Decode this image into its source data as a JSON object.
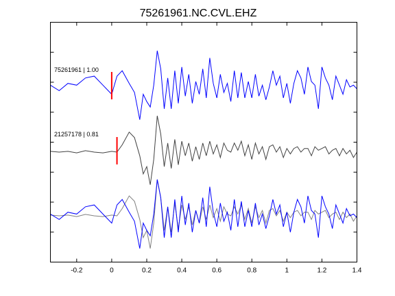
{
  "chart_data": {
    "type": "line",
    "title": "75261961.NC.CVL.EHZ",
    "xlabel": "",
    "ylabel": "",
    "xlim": [
      -0.35,
      1.4
    ],
    "xticks": [
      -0.2,
      0,
      0.2,
      0.4,
      0.6,
      0.8,
      1,
      1.2,
      1.4
    ],
    "xtick_labels": [
      "-0.2",
      "0",
      "0.2",
      "0.4",
      "0.6",
      "0.8",
      "1",
      "1.2",
      "1.4"
    ],
    "grid": false,
    "colors": {
      "trace_a": "#0000ff",
      "trace_b": "#404040",
      "overlay_b": "#808080",
      "pick": "#ff0000"
    },
    "traces": [
      {
        "label": "75261961 | 1.00",
        "pick_time": 0.0,
        "x": [
          -0.35,
          -0.3,
          -0.25,
          -0.2,
          -0.15,
          -0.1,
          -0.05,
          0,
          0.03,
          0.06,
          0.1,
          0.13,
          0.16,
          0.18,
          0.2,
          0.22,
          0.24,
          0.26,
          0.28,
          0.3,
          0.32,
          0.34,
          0.36,
          0.38,
          0.4,
          0.42,
          0.44,
          0.46,
          0.48,
          0.5,
          0.52,
          0.54,
          0.56,
          0.58,
          0.6,
          0.62,
          0.64,
          0.66,
          0.68,
          0.7,
          0.72,
          0.74,
          0.76,
          0.78,
          0.8,
          0.82,
          0.84,
          0.86,
          0.88,
          0.9,
          0.92,
          0.94,
          0.96,
          0.98,
          1.0,
          1.02,
          1.04,
          1.06,
          1.08,
          1.1,
          1.12,
          1.14,
          1.16,
          1.18,
          1.2,
          1.22,
          1.24,
          1.26,
          1.28,
          1.3,
          1.32,
          1.34,
          1.36,
          1.38,
          1.4
        ],
        "y": [
          0.05,
          -0.1,
          0.1,
          0.05,
          0.25,
          0.3,
          0.05,
          -0.2,
          0.3,
          0.45,
          0.1,
          -0.15,
          -0.9,
          -0.2,
          -0.4,
          -0.55,
          0.05,
          1.0,
          0.5,
          -0.6,
          0.25,
          -0.6,
          0.45,
          -0.45,
          0.55,
          -0.25,
          0.35,
          -0.45,
          0.15,
          -0.2,
          0.5,
          -0.3,
          0.8,
          0.1,
          -0.3,
          0.35,
          -0.15,
          0.1,
          -0.4,
          0.45,
          -0.3,
          0.4,
          -0.3,
          0.15,
          -0.3,
          0.35,
          -0.25,
          0.05,
          -0.35,
          0.0,
          0.45,
          0.05,
          0.3,
          -0.3,
          0.1,
          -0.45,
          0.1,
          0.45,
          0.25,
          -0.2,
          0.55,
          0.15,
          0.05,
          -0.6,
          0.55,
          0.25,
          0.05,
          -0.35,
          0.3,
          0.05,
          -0.2,
          0.2,
          0.0,
          0.05,
          -0.05
        ]
      },
      {
        "label": "21257178 | 0.81",
        "pick_time": 0.03,
        "x": [
          -0.35,
          -0.3,
          -0.25,
          -0.2,
          -0.15,
          -0.1,
          -0.05,
          0,
          0.03,
          0.06,
          0.1,
          0.13,
          0.16,
          0.18,
          0.2,
          0.22,
          0.24,
          0.26,
          0.28,
          0.3,
          0.32,
          0.34,
          0.36,
          0.38,
          0.4,
          0.42,
          0.44,
          0.46,
          0.48,
          0.5,
          0.52,
          0.54,
          0.56,
          0.58,
          0.6,
          0.62,
          0.64,
          0.66,
          0.68,
          0.7,
          0.72,
          0.74,
          0.76,
          0.78,
          0.8,
          0.82,
          0.84,
          0.86,
          0.88,
          0.9,
          0.92,
          0.94,
          0.96,
          0.98,
          1.0,
          1.02,
          1.04,
          1.06,
          1.08,
          1.1,
          1.12,
          1.14,
          1.16,
          1.18,
          1.2,
          1.22,
          1.24,
          1.26,
          1.28,
          1.3,
          1.32,
          1.34,
          1.36,
          1.38,
          1.4
        ],
        "y": [
          0.02,
          0.0,
          0.02,
          -0.02,
          0.04,
          0.0,
          -0.02,
          0.02,
          0.0,
          0.2,
          0.55,
          0.4,
          -0.1,
          -0.6,
          -0.4,
          -0.9,
          -0.2,
          1.0,
          0.5,
          -0.4,
          0.25,
          -0.45,
          0.35,
          -0.35,
          0.3,
          -0.1,
          0.25,
          -0.25,
          0.15,
          -0.2,
          0.25,
          -0.1,
          0.3,
          -0.05,
          0.2,
          -0.15,
          0.25,
          0.05,
          0.0,
          0.25,
          0.05,
          0.3,
          -0.1,
          0.2,
          -0.2,
          0.25,
          -0.05,
          0.15,
          -0.2,
          0.15,
          0.2,
          0.0,
          0.15,
          -0.15,
          0.1,
          -0.05,
          0.1,
          0.15,
          0.0,
          0.1,
          0.1,
          -0.1,
          0.15,
          0.05,
          0.1,
          0.15,
          -0.05,
          0.05,
          0.1,
          -0.1,
          0.1,
          -0.05,
          0.05,
          -0.15,
          0.0
        ]
      }
    ]
  }
}
